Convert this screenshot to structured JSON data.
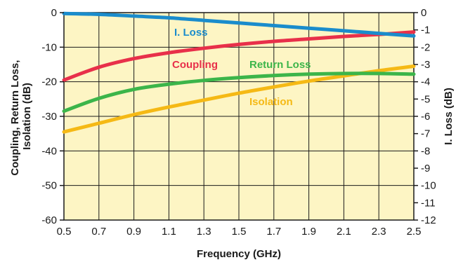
{
  "chart_data": {
    "type": "line",
    "title": "",
    "xlabel": "Frequency (GHz)",
    "ylabel_left": "Coupling, Return Loss, Isolation (dB)",
    "ylabel_left_lines": [
      "Coupling, Return Loss,",
      "Isolation (dB)"
    ],
    "ylabel_right": "I. Loss (dB)",
    "xlim": [
      0.5,
      2.5
    ],
    "ylim_left": [
      -60,
      0
    ],
    "ylim_right": [
      -12,
      0
    ],
    "x_ticks": [
      "0.5",
      "0.7",
      "0.9",
      "1.1",
      "1.3",
      "1.5",
      "1.7",
      "1.9",
      "2.1",
      "2.3",
      "2.5"
    ],
    "y_left_ticks": [
      "0",
      "-10",
      "-20",
      "-30",
      "-40",
      "-50",
      "-60"
    ],
    "y_right_ticks": [
      "0",
      "-1",
      "-2",
      "-3",
      "-4",
      "-5",
      "-6",
      "-7",
      "-8",
      "-9",
      "-10",
      "-11",
      "-12"
    ],
    "grid": true,
    "plot_background": "#fdf5c4",
    "series": [
      {
        "name": "I. Loss",
        "axis": "right",
        "color": "#1a8ccc",
        "x": [
          0.5,
          0.7,
          0.9,
          1.1,
          1.3,
          1.5,
          1.7,
          1.9,
          2.1,
          2.3,
          2.5
        ],
        "values": [
          -0.05,
          -0.1,
          -0.2,
          -0.3,
          -0.45,
          -0.6,
          -0.75,
          -0.9,
          -1.05,
          -1.2,
          -1.35
        ]
      },
      {
        "name": "Coupling",
        "axis": "left",
        "color": "#e8304a",
        "x": [
          0.5,
          0.7,
          0.9,
          1.1,
          1.3,
          1.5,
          1.7,
          1.9,
          2.1,
          2.3,
          2.5
        ],
        "values": [
          -19.5,
          -15.8,
          -13.3,
          -11.6,
          -10.3,
          -9.2,
          -8.3,
          -7.6,
          -6.9,
          -6.3,
          -5.6
        ]
      },
      {
        "name": "Return Loss",
        "axis": "left",
        "color": "#3cb54a",
        "x": [
          0.5,
          0.7,
          0.9,
          1.1,
          1.3,
          1.5,
          1.7,
          1.9,
          2.1,
          2.3,
          2.5
        ],
        "values": [
          -28.5,
          -24.8,
          -22.2,
          -20.7,
          -19.6,
          -18.8,
          -18.2,
          -17.8,
          -17.6,
          -17.6,
          -17.8
        ]
      },
      {
        "name": "Isolation",
        "axis": "left",
        "color": "#f5b915",
        "x": [
          0.5,
          0.7,
          0.9,
          1.1,
          1.3,
          1.5,
          1.7,
          1.9,
          2.1,
          2.3,
          2.5
        ],
        "values": [
          -34.5,
          -32.0,
          -29.5,
          -27.3,
          -25.3,
          -23.3,
          -21.5,
          -19.8,
          -18.3,
          -16.8,
          -15.5
        ]
      }
    ]
  }
}
